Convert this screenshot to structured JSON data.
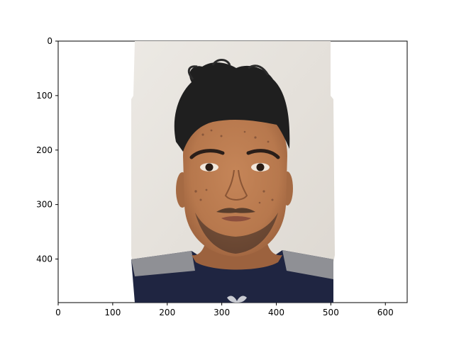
{
  "image": {
    "description_icon": "portrait-photo",
    "colors": {
      "wall": "#e6e2dc",
      "skin": "#b7784d",
      "hair": "#1f1f1f",
      "shirt_navy": "#1f2541",
      "shirt_gray": "#8f9095",
      "figure_bg": "#ffffff",
      "axis": "#000000"
    }
  },
  "axes": {
    "xlim": [
      0,
      640
    ],
    "ylim": [
      480,
      0
    ],
    "x_ticks": [
      0,
      100,
      200,
      300,
      400,
      500,
      600
    ],
    "y_ticks": [
      0,
      100,
      200,
      300,
      400
    ],
    "x_tick_labels": [
      "0",
      "100",
      "200",
      "300",
      "400",
      "500",
      "600"
    ],
    "y_tick_labels": [
      "0",
      "100",
      "200",
      "300",
      "400"
    ],
    "grid": false
  }
}
